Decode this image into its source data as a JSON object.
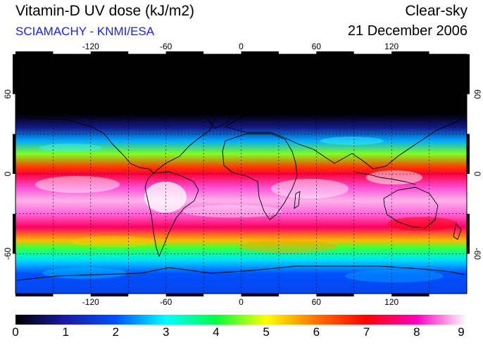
{
  "header": {
    "title": "Vitamin-D UV dose (kJ/m2)",
    "subtitle": "SCIAMACHY - KNMI/ESA",
    "sky_condition": "Clear-sky",
    "date": "21 December 2006"
  },
  "map": {
    "lon_ticks": [
      "-120",
      "-60",
      "0",
      "60",
      "120"
    ],
    "lat_ticks": [
      "60",
      "0",
      "-60"
    ],
    "grid": "dashed every 30 degrees",
    "projection": "equirectangular",
    "lon_range": [
      -180,
      180
    ],
    "lat_range": [
      -90,
      90
    ]
  },
  "colorbar": {
    "min": 0,
    "max": 9,
    "labels": [
      "0",
      "1",
      "2",
      "3",
      "4",
      "5",
      "6",
      "7",
      "8",
      "9"
    ],
    "colors": [
      "#000000",
      "#1a1aa8",
      "#0050ff",
      "#00ffff",
      "#00ff40",
      "#ffff00",
      "#ff7000",
      "#ff0000",
      "#ff00c0",
      "#ffffff"
    ]
  },
  "chart_data": {
    "type": "heatmap",
    "title": "Vitamin-D UV dose (kJ/m2)",
    "x_range": [
      -180,
      180
    ],
    "y_range": [
      -90,
      90
    ],
    "value_range": [
      0,
      9
    ],
    "zonal_profile": {
      "lat": [
        90,
        60,
        45,
        35,
        25,
        15,
        5,
        0,
        -10,
        -20,
        -30,
        -40,
        -50,
        -55,
        -60,
        -65,
        -75,
        -90
      ],
      "dose": [
        0,
        0,
        0,
        0.8,
        2.5,
        4.5,
        6.5,
        7.3,
        8.3,
        8.7,
        8.4,
        7.5,
        5.5,
        4.3,
        3.5,
        2.8,
        2.0,
        1.8
      ]
    }
  }
}
